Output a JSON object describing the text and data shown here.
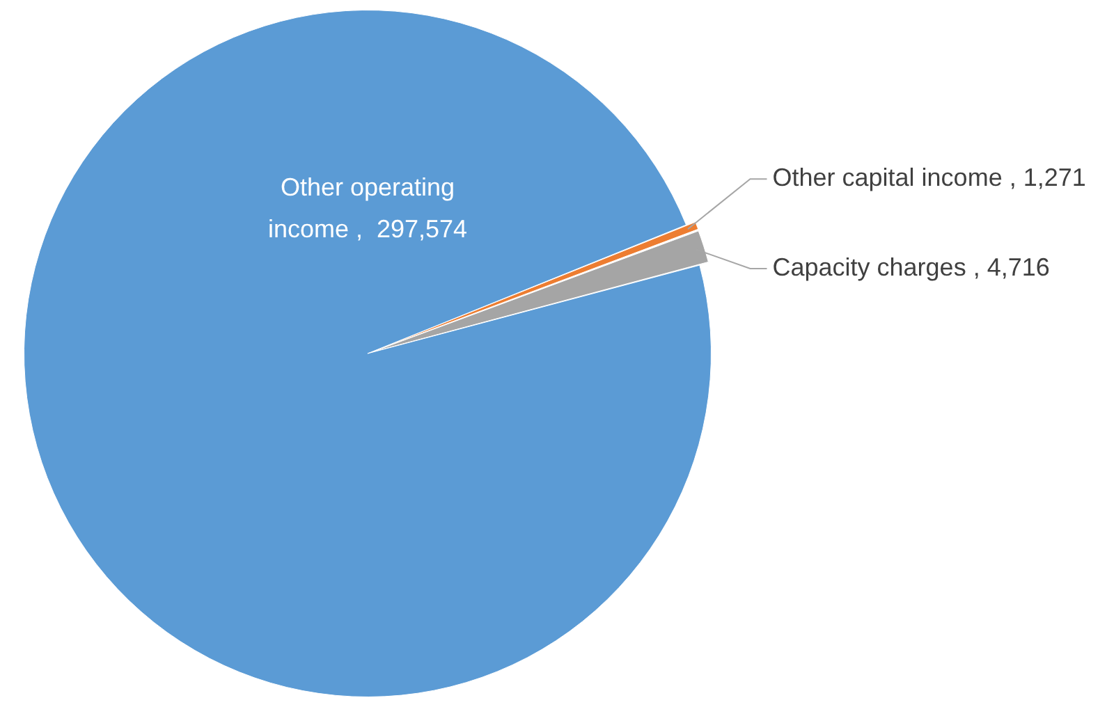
{
  "chart_data": {
    "type": "pie",
    "categories": [
      "Other capital income",
      "Capacity charges",
      "Other operating income"
    ],
    "values": [
      1271,
      4716,
      297574
    ],
    "value_labels": [
      "1,271",
      "4,716",
      "297,574"
    ],
    "colors": [
      "#ed7d31",
      "#a5a5a5",
      "#5b9bd5"
    ],
    "legend": false
  }
}
